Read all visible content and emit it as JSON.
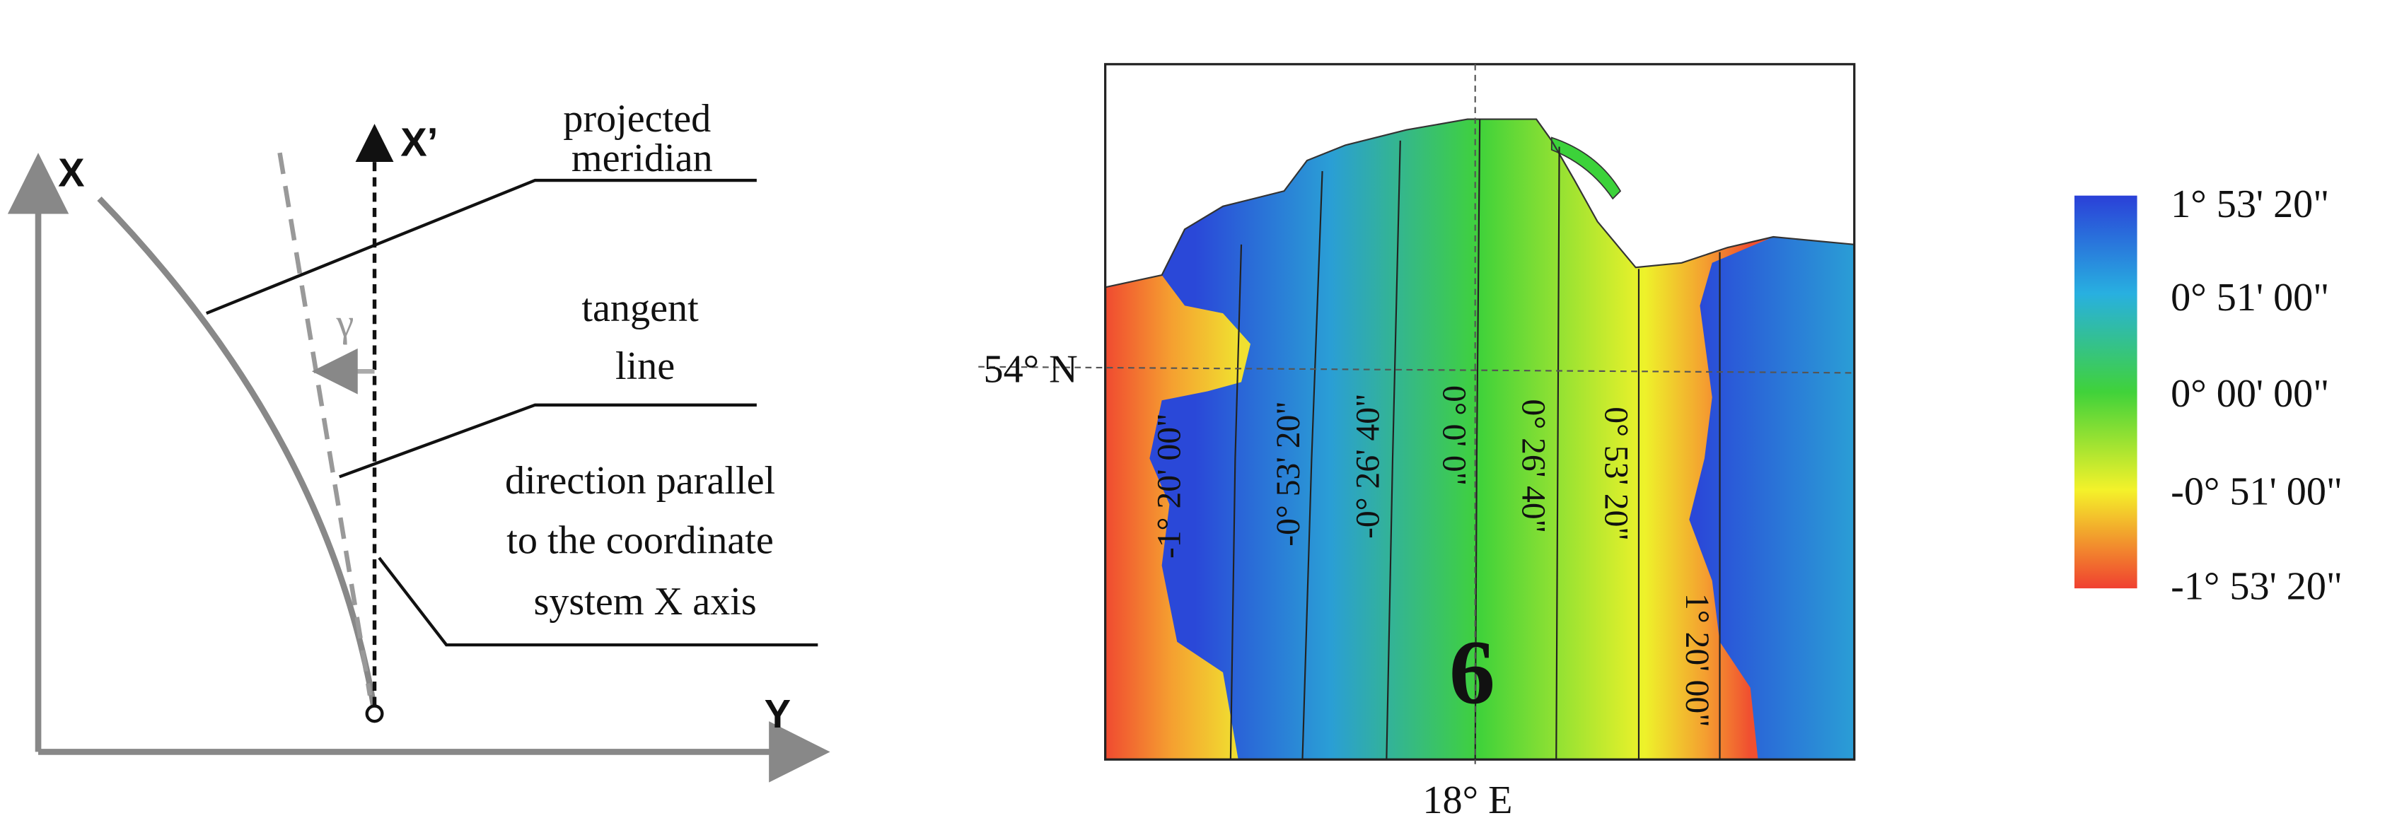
{
  "diagram": {
    "axis_x": "X",
    "axis_x_prime": "X’",
    "axis_y": "Y",
    "angle": "γ",
    "labels": [
      [
        "projected",
        "meridian"
      ],
      [
        "tangent",
        "line"
      ],
      [
        "direction parallel",
        "to the coordinate",
        "system X axis"
      ]
    ]
  },
  "map": {
    "lat_label": "54° N",
    "lon_label": "18° E",
    "zone": "6",
    "isolines": [
      "-1° 20' 00\"",
      "-0° 53' 20\"",
      "-0° 26' 40\"",
      "0° 0' 0\"",
      "0° 26' 40\"",
      "0° 53' 20\"",
      "1° 20' 00\""
    ]
  },
  "colorbar": {
    "labels": [
      "1° 53' 20\"",
      "0° 51' 00\"",
      "0° 00' 00\"",
      "-0° 51' 00\"",
      "-1° 53' 20\""
    ]
  }
}
